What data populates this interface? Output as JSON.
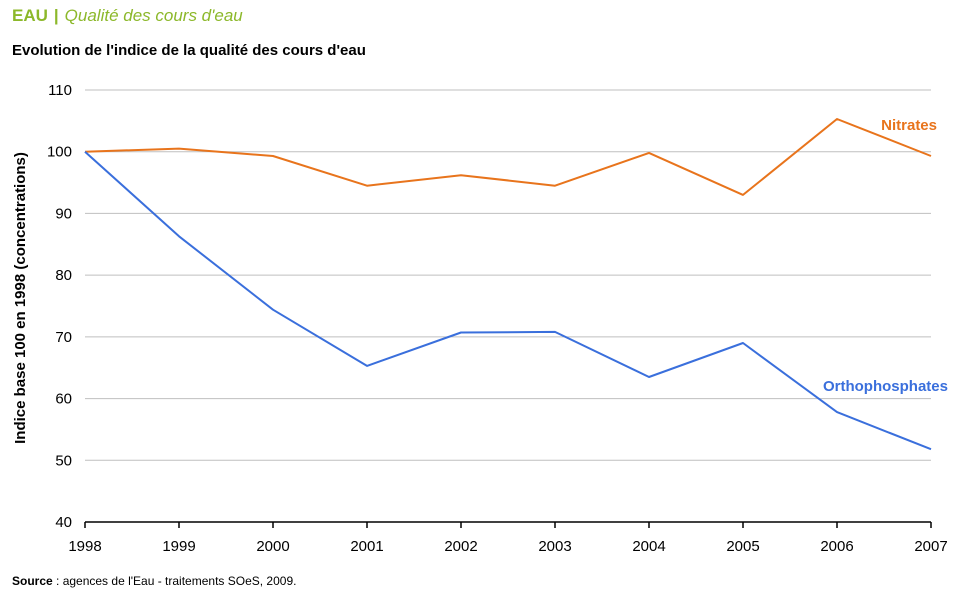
{
  "header": {
    "brand": "EAU",
    "separator": "|",
    "subtitle": "Qualité des cours d'eau"
  },
  "source": {
    "label": "Source",
    "text": " : agences de l'Eau - traitements SOeS, 2009."
  },
  "colors": {
    "brand": "#8cb82a",
    "nitrates": "#e8741c",
    "orthophosphates": "#3a6fdc",
    "grid": "#bfbfbf",
    "axis": "#000000"
  },
  "chart_data": {
    "type": "line",
    "title": "Evolution de l'indice de la qualité des cours d'eau",
    "xlabel": "",
    "ylabel": "Indice base 100 en 1998 (concentrations)",
    "x": [
      "1998",
      "1999",
      "2000",
      "2001",
      "2002",
      "2003",
      "2004",
      "2005",
      "2006",
      "2007"
    ],
    "ylim": [
      40,
      110
    ],
    "yticks": [
      40,
      50,
      60,
      70,
      80,
      90,
      100,
      110
    ],
    "grid": true,
    "series": [
      {
        "name": "Nitrates",
        "values": [
          100,
          100.5,
          99.3,
          94.5,
          96.2,
          94.5,
          99.8,
          93.0,
          105.3,
          99.3
        ]
      },
      {
        "name": "Orthophosphates",
        "values": [
          100,
          86.3,
          74.4,
          65.3,
          70.7,
          70.8,
          63.5,
          69.0,
          57.8,
          51.8
        ]
      }
    ]
  }
}
